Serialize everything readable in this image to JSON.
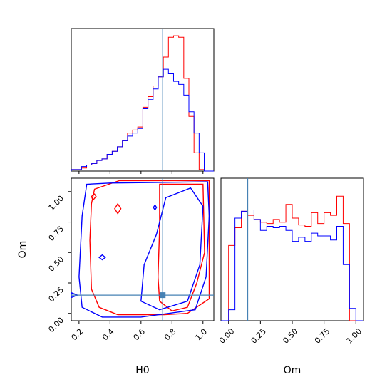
{
  "chart_data": {
    "type": "corner",
    "parameters": [
      "H0",
      "Om"
    ],
    "truth": {
      "H0": 0.74,
      "Om": 0.15,
      "color": "#4682b4"
    },
    "series": [
      {
        "color": "#ff0000"
      },
      {
        "color": "#0000ff"
      }
    ],
    "panels": {
      "H0_hist": {
        "xlim": [
          0.15,
          1.07
        ],
        "bin_edges": [
          0.15,
          0.183,
          0.216,
          0.249,
          0.282,
          0.315,
          0.348,
          0.381,
          0.414,
          0.447,
          0.48,
          0.513,
          0.546,
          0.579,
          0.612,
          0.645,
          0.678,
          0.711,
          0.744,
          0.777,
          0.81,
          0.843,
          0.876,
          0.909,
          0.942,
          0.975,
          1.008,
          1.041,
          1.07
        ],
        "series": [
          {
            "values": [
              0.01,
              0.01,
              0.02,
              0.04,
              0.05,
              0.07,
              0.08,
              0.11,
              0.13,
              0.16,
              0.2,
              0.25,
              0.27,
              0.29,
              0.42,
              0.49,
              0.56,
              0.62,
              0.75,
              0.88,
              0.89,
              0.88,
              0.61,
              0.36,
              0.12,
              0.01,
              0.0,
              0.0
            ]
          },
          {
            "values": [
              0.01,
              0.01,
              0.03,
              0.04,
              0.05,
              0.07,
              0.08,
              0.11,
              0.13,
              0.16,
              0.2,
              0.23,
              0.25,
              0.28,
              0.41,
              0.47,
              0.54,
              0.62,
              0.67,
              0.64,
              0.59,
              0.57,
              0.5,
              0.39,
              0.25,
              0.12,
              0.0,
              0.0
            ]
          }
        ]
      },
      "Om_hist": {
        "xlim": [
          -0.06,
          1.06
        ],
        "bin_edges": [
          -0.06,
          0.0,
          0.05,
          0.1,
          0.15,
          0.2,
          0.25,
          0.3,
          0.35,
          0.4,
          0.45,
          0.5,
          0.55,
          0.6,
          0.65,
          0.7,
          0.75,
          0.8,
          0.85,
          0.9,
          0.95,
          1.0,
          1.06
        ],
        "series": [
          {
            "values": [
              0.0,
              0.55,
              0.68,
              0.8,
              0.77,
              0.74,
              0.72,
              0.71,
              0.74,
              0.72,
              0.85,
              0.75,
              0.7,
              0.69,
              0.79,
              0.71,
              0.79,
              0.77,
              0.91,
              0.71,
              0.0,
              0.0
            ]
          },
          {
            "values": [
              0.0,
              0.08,
              0.75,
              0.8,
              0.81,
              0.74,
              0.66,
              0.69,
              0.68,
              0.69,
              0.66,
              0.58,
              0.61,
              0.58,
              0.64,
              0.62,
              0.62,
              0.59,
              0.69,
              0.41,
              0.09,
              0.0
            ]
          }
        ]
      },
      "H0_Om_contours": {
        "xlim": [
          0.15,
          1.07
        ],
        "ylim": [
          -0.06,
          1.11
        ],
        "contours": [
          {
            "series": 0,
            "points": [
              [
                0.3,
                1.02
              ],
              [
                0.46,
                1.09
              ],
              [
                1.04,
                1.09
              ],
              [
                1.04,
                0.12
              ],
              [
                0.9,
                0.0
              ],
              [
                0.75,
                -0.01
              ],
              [
                0.45,
                -0.01
              ],
              [
                0.33,
                0.05
              ],
              [
                0.28,
                0.2
              ],
              [
                0.27,
                0.6
              ],
              [
                0.28,
                0.9
              ]
            ]
          },
          {
            "series": 0,
            "points": [
              [
                0.72,
                1.06
              ],
              [
                1.0,
                1.06
              ],
              [
                1.01,
                0.5
              ],
              [
                0.96,
                0.25
              ],
              [
                0.9,
                0.05
              ],
              [
                0.8,
                0.02
              ],
              [
                0.72,
                0.1
              ],
              [
                0.71,
                0.3
              ],
              [
                0.72,
                0.7
              ]
            ]
          },
          {
            "series": 0,
            "points": [
              [
                0.45,
                0.82
              ],
              [
                0.47,
                0.86
              ],
              [
                0.45,
                0.9
              ],
              [
                0.43,
                0.86
              ]
            ]
          },
          {
            "series": 0,
            "points": [
              [
                0.29,
                0.93
              ],
              [
                0.31,
                0.96
              ],
              [
                0.3,
                0.98
              ],
              [
                0.28,
                0.96
              ]
            ]
          },
          {
            "series": 1,
            "points": [
              [
                0.22,
                0.8
              ],
              [
                0.25,
                1.06
              ],
              [
                0.4,
                1.07
              ],
              [
                1.03,
                1.08
              ],
              [
                1.04,
                0.8
              ],
              [
                1.02,
                0.3
              ],
              [
                0.95,
                0.03
              ],
              [
                0.6,
                -0.03
              ],
              [
                0.35,
                -0.03
              ],
              [
                0.22,
                0.05
              ],
              [
                0.2,
                0.3
              ]
            ]
          },
          {
            "series": 1,
            "points": [
              [
                0.76,
                0.95
              ],
              [
                0.92,
                1.03
              ],
              [
                1.0,
                0.88
              ],
              [
                0.98,
                0.4
              ],
              [
                0.9,
                0.1
              ],
              [
                0.72,
                0.03
              ],
              [
                0.6,
                0.1
              ],
              [
                0.62,
                0.4
              ],
              [
                0.7,
                0.65
              ]
            ]
          },
          {
            "series": 1,
            "points": [
              [
                0.69,
                0.85
              ],
              [
                0.7,
                0.87
              ],
              [
                0.69,
                0.89
              ],
              [
                0.68,
                0.87
              ]
            ]
          },
          {
            "series": 1,
            "points": [
              [
                0.35,
                0.44
              ],
              [
                0.37,
                0.46
              ],
              [
                0.35,
                0.48
              ],
              [
                0.33,
                0.46
              ]
            ]
          },
          {
            "series": 1,
            "points": [
              [
                0.15,
                0.13
              ],
              [
                0.19,
                0.15
              ],
              [
                0.15,
                0.17
              ]
            ]
          }
        ]
      }
    },
    "xlabels": [
      "H0",
      "Om"
    ],
    "ylabel": "Om",
    "ticks": {
      "H0": [
        "0.2",
        "0.4",
        "0.6",
        "0.8",
        "1.0"
      ],
      "H0_values": [
        0.2,
        0.4,
        0.6,
        0.8,
        1.0
      ],
      "Om": [
        "0.00",
        "0.25",
        "0.50",
        "0.75",
        "1.00"
      ],
      "Om_values": [
        0.0,
        0.25,
        0.5,
        0.75,
        1.0
      ]
    }
  }
}
